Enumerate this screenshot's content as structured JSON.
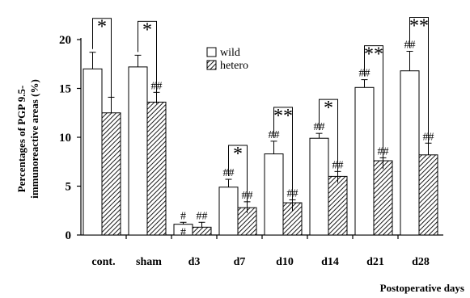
{
  "chart_data": {
    "type": "bar",
    "categories": [
      "cont.",
      "sham",
      "d3",
      "d7",
      "d10",
      "d14",
      "d21",
      "d28"
    ],
    "series": [
      {
        "name": "wild",
        "values": [
          17.0,
          17.2,
          1.1,
          4.9,
          8.3,
          9.9,
          15.1,
          16.8
        ],
        "errors": [
          1.7,
          1.2,
          0.2,
          0.8,
          1.3,
          0.5,
          0.8,
          2.0
        ],
        "color": "#ffffff",
        "annotations": [
          "",
          "",
          "#",
          "##",
          "##",
          "##",
          "##",
          "##"
        ]
      },
      {
        "name": "hetero",
        "values": [
          12.5,
          13.6,
          0.8,
          2.8,
          3.3,
          6.0,
          7.6,
          8.2
        ],
        "errors": [
          1.6,
          1.0,
          0.5,
          0.6,
          0.3,
          0.5,
          0.3,
          1.2
        ],
        "color": "hatched",
        "annotations": [
          "",
          "##",
          "##",
          "##",
          "##",
          "##",
          "##",
          "##"
        ]
      }
    ],
    "extra_annotations": [
      {
        "category": "d3",
        "series": "wild",
        "text": "#",
        "position": "below-top"
      }
    ],
    "significance": [
      "*",
      "*",
      "",
      "*",
      "**",
      "*",
      "**",
      "**"
    ],
    "xlabel": "Postoperative days",
    "ylabel_line1": "Percentages of PGP 9.5-",
    "ylabel_line2": "immunoreactive areas (%)",
    "ylim": [
      0,
      20
    ],
    "yticks": [
      "0",
      "5",
      "10",
      "15",
      "20"
    ],
    "legend": {
      "placement": "top-center"
    },
    "grid": false
  }
}
